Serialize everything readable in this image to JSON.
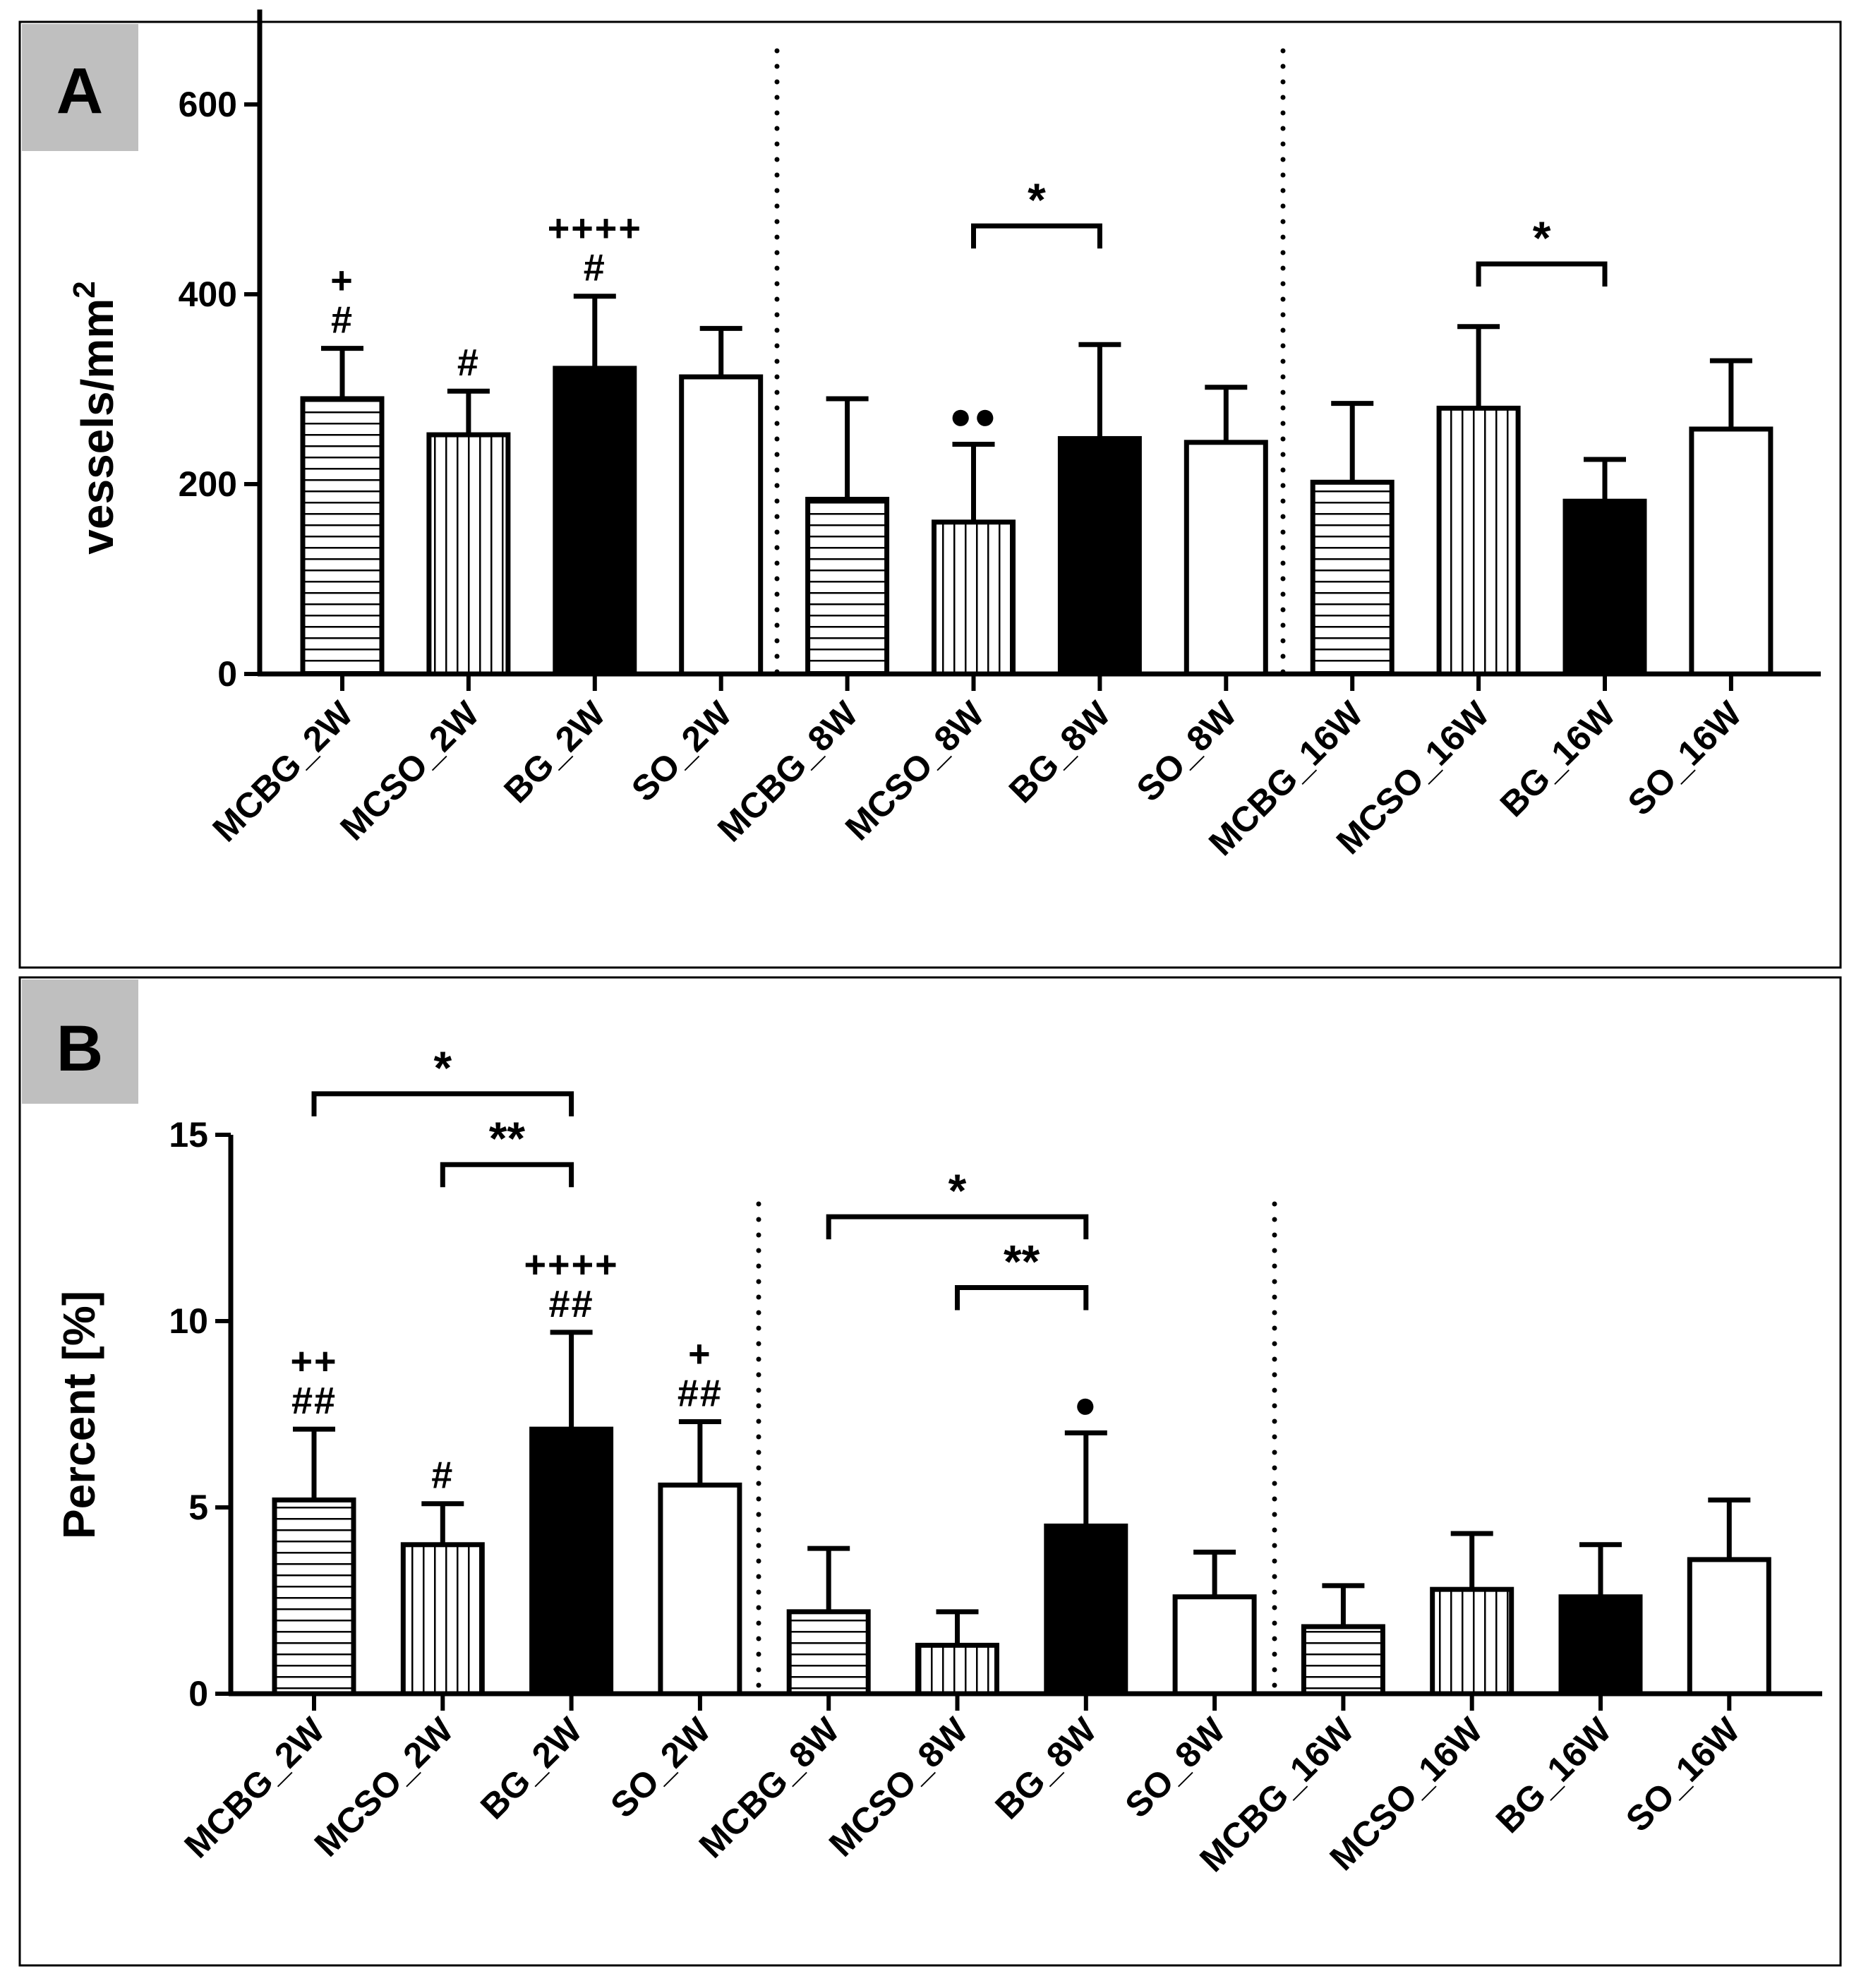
{
  "colors": {
    "black": "#000000",
    "white": "#ffffff",
    "panel_tab": "#bfbfbf"
  },
  "chart_data": [
    {
      "type": "bar",
      "panel": "A",
      "ylabel": "vessels/mm",
      "ylabel_superscript": "2",
      "ylim": [
        0,
        700
      ],
      "yticks": [
        0,
        200,
        400,
        600
      ],
      "categories": [
        "MCBG_2W",
        "MCSO_2W",
        "BG_2W",
        "SO_2W",
        "MCBG_8W",
        "MCSO_8W",
        "BG_8W",
        "SO_8W",
        "MCBG_16W",
        "MCSO_16W",
        "BG_16W",
        "SO_16W"
      ],
      "patterns": [
        "horizontal",
        "vertical",
        "solid",
        "open",
        "horizontal",
        "vertical",
        "solid",
        "open",
        "horizontal",
        "vertical",
        "solid",
        "open"
      ],
      "values": [
        290,
        252,
        322,
        313,
        184,
        160,
        248,
        244,
        202,
        280,
        182,
        258
      ],
      "errors_upper": [
        343,
        298,
        398,
        364,
        290,
        242,
        347,
        302,
        285,
        366,
        226,
        330
      ],
      "annotations": [
        {
          "index": 0,
          "lines": [
            "+",
            "#"
          ]
        },
        {
          "index": 1,
          "lines": [
            "#"
          ]
        },
        {
          "index": 2,
          "lines": [
            "++++",
            "#"
          ]
        },
        {
          "index": 5,
          "lines": [
            "●●"
          ]
        }
      ],
      "brackets": [
        {
          "from": 5,
          "to": 6,
          "y": 472,
          "label": "*"
        },
        {
          "from": 9,
          "to": 10,
          "y": 432,
          "label": "*"
        }
      ]
    },
    {
      "type": "bar",
      "panel": "B",
      "ylabel": "Percent [%]",
      "ylim": [
        0,
        15
      ],
      "yticks": [
        0,
        5,
        10,
        15
      ],
      "categories": [
        "MCBG_2W",
        "MCSO_2W",
        "BG_2W",
        "SO_2W",
        "MCBG_8W",
        "MCSO_8W",
        "BG_8W",
        "SO_8W",
        "MCBG_16W",
        "MCSO_16W",
        "BG_16W",
        "SO_16W"
      ],
      "patterns": [
        "horizontal",
        "vertical",
        "solid",
        "open",
        "horizontal",
        "vertical",
        "solid",
        "open",
        "horizontal",
        "vertical",
        "solid",
        "open"
      ],
      "values": [
        5.2,
        4.0,
        7.1,
        5.6,
        2.2,
        1.3,
        4.5,
        2.6,
        1.8,
        2.8,
        2.6,
        3.6
      ],
      "errors_upper": [
        7.1,
        5.1,
        9.7,
        7.3,
        3.9,
        2.2,
        7.0,
        3.8,
        2.9,
        4.3,
        4.0,
        5.2
      ],
      "annotations": [
        {
          "index": 0,
          "lines": [
            "++",
            "##"
          ]
        },
        {
          "index": 1,
          "lines": [
            "#"
          ]
        },
        {
          "index": 2,
          "lines": [
            "++++",
            "##"
          ]
        },
        {
          "index": 3,
          "lines": [
            "+",
            "##"
          ]
        },
        {
          "index": 6,
          "lines": [
            "●"
          ]
        }
      ],
      "brackets": [
        {
          "from": 0,
          "to": 2,
          "y": 16.1,
          "label": "*"
        },
        {
          "from": 1,
          "to": 2,
          "y": 14.2,
          "label": "**"
        },
        {
          "from": 4,
          "to": 6,
          "y": 12.8,
          "label": "*"
        },
        {
          "from": 5,
          "to": 6,
          "y": 10.9,
          "label": "**"
        }
      ]
    }
  ]
}
